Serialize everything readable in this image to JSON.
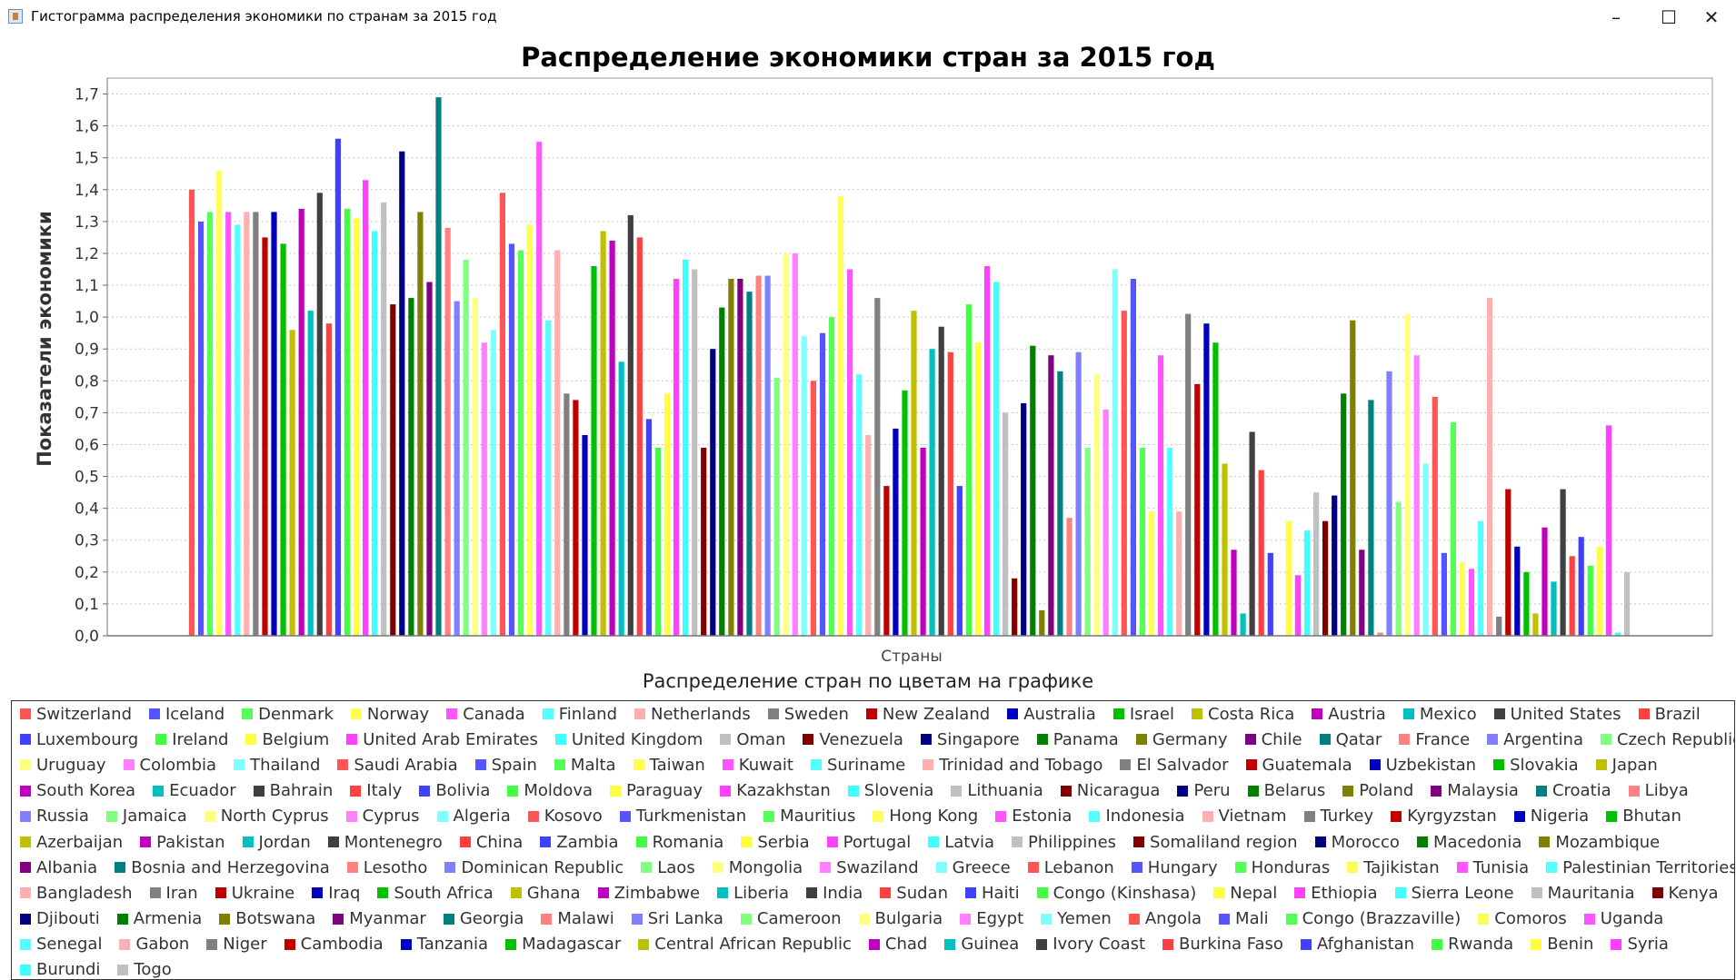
{
  "window": {
    "title": "Гистограмма распределения экономики по странам за 2015 год",
    "controls": {
      "minimize": "–",
      "maximize": "☐",
      "close": "✕"
    }
  },
  "chart_data": {
    "type": "bar",
    "title": "Распределение экономики стран за 2015 год",
    "xlabel": "Страны",
    "ylabel": "Показатели экономики",
    "ylim": [
      0,
      1.75
    ],
    "yticks": [
      "0,0",
      "0,1",
      "0,2",
      "0,3",
      "0,4",
      "0,5",
      "0,6",
      "0,7",
      "0,8",
      "0,9",
      "1,0",
      "1,1",
      "1,2",
      "1,3",
      "1,4",
      "1,5",
      "1,6",
      "1,7"
    ],
    "grid": true,
    "legend_title": "Распределение стран по цветам на графике",
    "legend_position": "bottom",
    "palette": [
      "#ff5555",
      "#5555ff",
      "#55ff55",
      "#ffff55",
      "#ff55ff",
      "#55ffff",
      "#ffafaf",
      "#808080",
      "#c00000",
      "#0000c0",
      "#00c000",
      "#c0c000",
      "#c000c0",
      "#00c0c0",
      "#404040",
      "#ff4040",
      "#4040ff",
      "#40ff40",
      "#ffff40",
      "#ff40ff",
      "#40ffff",
      "#c0c0c0",
      "#800000",
      "#000080",
      "#008000",
      "#808000",
      "#800080",
      "#008080",
      "#ff8080",
      "#8080ff",
      "#80ff80",
      "#ffff80",
      "#ff80ff",
      "#80ffff"
    ],
    "series": [
      {
        "name": "Switzerland",
        "value": 1.4
      },
      {
        "name": "Iceland",
        "value": 1.3
      },
      {
        "name": "Denmark",
        "value": 1.33
      },
      {
        "name": "Norway",
        "value": 1.46
      },
      {
        "name": "Canada",
        "value": 1.33
      },
      {
        "name": "Finland",
        "value": 1.29
      },
      {
        "name": "Netherlands",
        "value": 1.33
      },
      {
        "name": "Sweden",
        "value": 1.33
      },
      {
        "name": "New Zealand",
        "value": 1.25
      },
      {
        "name": "Australia",
        "value": 1.33
      },
      {
        "name": "Israel",
        "value": 1.23
      },
      {
        "name": "Costa Rica",
        "value": 0.96
      },
      {
        "name": "Austria",
        "value": 1.34
      },
      {
        "name": "Mexico",
        "value": 1.02
      },
      {
        "name": "United States",
        "value": 1.39
      },
      {
        "name": "Brazil",
        "value": 0.98
      },
      {
        "name": "Luxembourg",
        "value": 1.56
      },
      {
        "name": "Ireland",
        "value": 1.34
      },
      {
        "name": "Belgium",
        "value": 1.31
      },
      {
        "name": "United Arab Emirates",
        "value": 1.43
      },
      {
        "name": "United Kingdom",
        "value": 1.27
      },
      {
        "name": "Oman",
        "value": 1.36
      },
      {
        "name": "Venezuela",
        "value": 1.04
      },
      {
        "name": "Singapore",
        "value": 1.52
      },
      {
        "name": "Panama",
        "value": 1.06
      },
      {
        "name": "Germany",
        "value": 1.33
      },
      {
        "name": "Chile",
        "value": 1.11
      },
      {
        "name": "Qatar",
        "value": 1.69
      },
      {
        "name": "France",
        "value": 1.28
      },
      {
        "name": "Argentina",
        "value": 1.05
      },
      {
        "name": "Czech Republic",
        "value": 1.18
      },
      {
        "name": "Uruguay",
        "value": 1.06
      },
      {
        "name": "Colombia",
        "value": 0.92
      },
      {
        "name": "Thailand",
        "value": 0.96
      },
      {
        "name": "Saudi Arabia",
        "value": 1.39
      },
      {
        "name": "Spain",
        "value": 1.23
      },
      {
        "name": "Malta",
        "value": 1.21
      },
      {
        "name": "Taiwan",
        "value": 1.29
      },
      {
        "name": "Kuwait",
        "value": 1.55
      },
      {
        "name": "Suriname",
        "value": 0.99
      },
      {
        "name": "Trinidad and Tobago",
        "value": 1.21
      },
      {
        "name": "El Salvador",
        "value": 0.76
      },
      {
        "name": "Guatemala",
        "value": 0.74
      },
      {
        "name": "Uzbekistan",
        "value": 0.63
      },
      {
        "name": "Slovakia",
        "value": 1.16
      },
      {
        "name": "Japan",
        "value": 1.27
      },
      {
        "name": "South Korea",
        "value": 1.24
      },
      {
        "name": "Ecuador",
        "value": 0.86
      },
      {
        "name": "Bahrain",
        "value": 1.32
      },
      {
        "name": "Italy",
        "value": 1.25
      },
      {
        "name": "Bolivia",
        "value": 0.68
      },
      {
        "name": "Moldova",
        "value": 0.59
      },
      {
        "name": "Paraguay",
        "value": 0.76
      },
      {
        "name": "Kazakhstan",
        "value": 1.12
      },
      {
        "name": "Slovenia",
        "value": 1.18
      },
      {
        "name": "Lithuania",
        "value": 1.15
      },
      {
        "name": "Nicaragua",
        "value": 0.59
      },
      {
        "name": "Peru",
        "value": 0.9
      },
      {
        "name": "Belarus",
        "value": 1.03
      },
      {
        "name": "Poland",
        "value": 1.12
      },
      {
        "name": "Malaysia",
        "value": 1.12
      },
      {
        "name": "Croatia",
        "value": 1.08
      },
      {
        "name": "Libya",
        "value": 1.13
      },
      {
        "name": "Russia",
        "value": 1.13
      },
      {
        "name": "Jamaica",
        "value": 0.81
      },
      {
        "name": "North Cyprus",
        "value": 1.2
      },
      {
        "name": "Cyprus",
        "value": 1.2
      },
      {
        "name": "Algeria",
        "value": 0.94
      },
      {
        "name": "Kosovo",
        "value": 0.8
      },
      {
        "name": "Turkmenistan",
        "value": 0.95
      },
      {
        "name": "Mauritius",
        "value": 1.0
      },
      {
        "name": "Hong Kong",
        "value": 1.38
      },
      {
        "name": "Estonia",
        "value": 1.15
      },
      {
        "name": "Indonesia",
        "value": 0.82
      },
      {
        "name": "Vietnam",
        "value": 0.63
      },
      {
        "name": "Turkey",
        "value": 1.06
      },
      {
        "name": "Kyrgyzstan",
        "value": 0.47
      },
      {
        "name": "Nigeria",
        "value": 0.65
      },
      {
        "name": "Bhutan",
        "value": 0.77
      },
      {
        "name": "Azerbaijan",
        "value": 1.02
      },
      {
        "name": "Pakistan",
        "value": 0.59
      },
      {
        "name": "Jordan",
        "value": 0.9
      },
      {
        "name": "Montenegro",
        "value": 0.97
      },
      {
        "name": "China",
        "value": 0.89
      },
      {
        "name": "Zambia",
        "value": 0.47
      },
      {
        "name": "Romania",
        "value": 1.04
      },
      {
        "name": "Serbia",
        "value": 0.92
      },
      {
        "name": "Portugal",
        "value": 1.16
      },
      {
        "name": "Latvia",
        "value": 1.11
      },
      {
        "name": "Philippines",
        "value": 0.7
      },
      {
        "name": "Somaliland region",
        "value": 0.18
      },
      {
        "name": "Morocco",
        "value": 0.73
      },
      {
        "name": "Macedonia",
        "value": 0.91
      },
      {
        "name": "Mozambique",
        "value": 0.08
      },
      {
        "name": "Albania",
        "value": 0.88
      },
      {
        "name": "Bosnia and Herzegovina",
        "value": 0.83
      },
      {
        "name": "Lesotho",
        "value": 0.37
      },
      {
        "name": "Dominican Republic",
        "value": 0.89
      },
      {
        "name": "Laos",
        "value": 0.59
      },
      {
        "name": "Mongolia",
        "value": 0.82
      },
      {
        "name": "Swaziland",
        "value": 0.71
      },
      {
        "name": "Greece",
        "value": 1.15
      },
      {
        "name": "Lebanon",
        "value": 1.02
      },
      {
        "name": "Hungary",
        "value": 1.12
      },
      {
        "name": "Honduras",
        "value": 0.59
      },
      {
        "name": "Tajikistan",
        "value": 0.39
      },
      {
        "name": "Tunisia",
        "value": 0.88
      },
      {
        "name": "Palestinian Territories",
        "value": 0.59
      },
      {
        "name": "Bangladesh",
        "value": 0.39
      },
      {
        "name": "Iran",
        "value": 1.01
      },
      {
        "name": "Ukraine",
        "value": 0.79
      },
      {
        "name": "Iraq",
        "value": 0.98
      },
      {
        "name": "South Africa",
        "value": 0.92
      },
      {
        "name": "Ghana",
        "value": 0.54
      },
      {
        "name": "Zimbabwe",
        "value": 0.27
      },
      {
        "name": "Liberia",
        "value": 0.07
      },
      {
        "name": "India",
        "value": 0.64
      },
      {
        "name": "Sudan",
        "value": 0.52
      },
      {
        "name": "Haiti",
        "value": 0.26
      },
      {
        "name": "Congo (Kinshasa)",
        "value": 0.0
      },
      {
        "name": "Nepal",
        "value": 0.36
      },
      {
        "name": "Ethiopia",
        "value": 0.19
      },
      {
        "name": "Sierra Leone",
        "value": 0.33
      },
      {
        "name": "Mauritania",
        "value": 0.45
      },
      {
        "name": "Kenya",
        "value": 0.36
      },
      {
        "name": "Djibouti",
        "value": 0.44
      },
      {
        "name": "Armenia",
        "value": 0.76
      },
      {
        "name": "Botswana",
        "value": 0.99
      },
      {
        "name": "Myanmar",
        "value": 0.27
      },
      {
        "name": "Georgia",
        "value": 0.74
      },
      {
        "name": "Malawi",
        "value": 0.01
      },
      {
        "name": "Sri Lanka",
        "value": 0.83
      },
      {
        "name": "Cameroon",
        "value": 0.42
      },
      {
        "name": "Bulgaria",
        "value": 1.01
      },
      {
        "name": "Egypt",
        "value": 0.88
      },
      {
        "name": "Yemen",
        "value": 0.54
      },
      {
        "name": "Angola",
        "value": 0.75
      },
      {
        "name": "Mali",
        "value": 0.26
      },
      {
        "name": "Congo (Brazzaville)",
        "value": 0.67
      },
      {
        "name": "Comoros",
        "value": 0.23
      },
      {
        "name": "Uganda",
        "value": 0.21
      },
      {
        "name": "Senegal",
        "value": 0.36
      },
      {
        "name": "Gabon",
        "value": 1.06
      },
      {
        "name": "Niger",
        "value": 0.06
      },
      {
        "name": "Cambodia",
        "value": 0.46
      },
      {
        "name": "Tanzania",
        "value": 0.28
      },
      {
        "name": "Madagascar",
        "value": 0.2
      },
      {
        "name": "Central African Republic",
        "value": 0.07
      },
      {
        "name": "Chad",
        "value": 0.34
      },
      {
        "name": "Guinea",
        "value": 0.17
      },
      {
        "name": "Ivory Coast",
        "value": 0.46
      },
      {
        "name": "Burkina Faso",
        "value": 0.25
      },
      {
        "name": "Afghanistan",
        "value": 0.31
      },
      {
        "name": "Rwanda",
        "value": 0.22
      },
      {
        "name": "Benin",
        "value": 0.28
      },
      {
        "name": "Syria",
        "value": 0.66
      },
      {
        "name": "Burundi",
        "value": 0.01
      },
      {
        "name": "Togo",
        "value": 0.2
      }
    ]
  }
}
